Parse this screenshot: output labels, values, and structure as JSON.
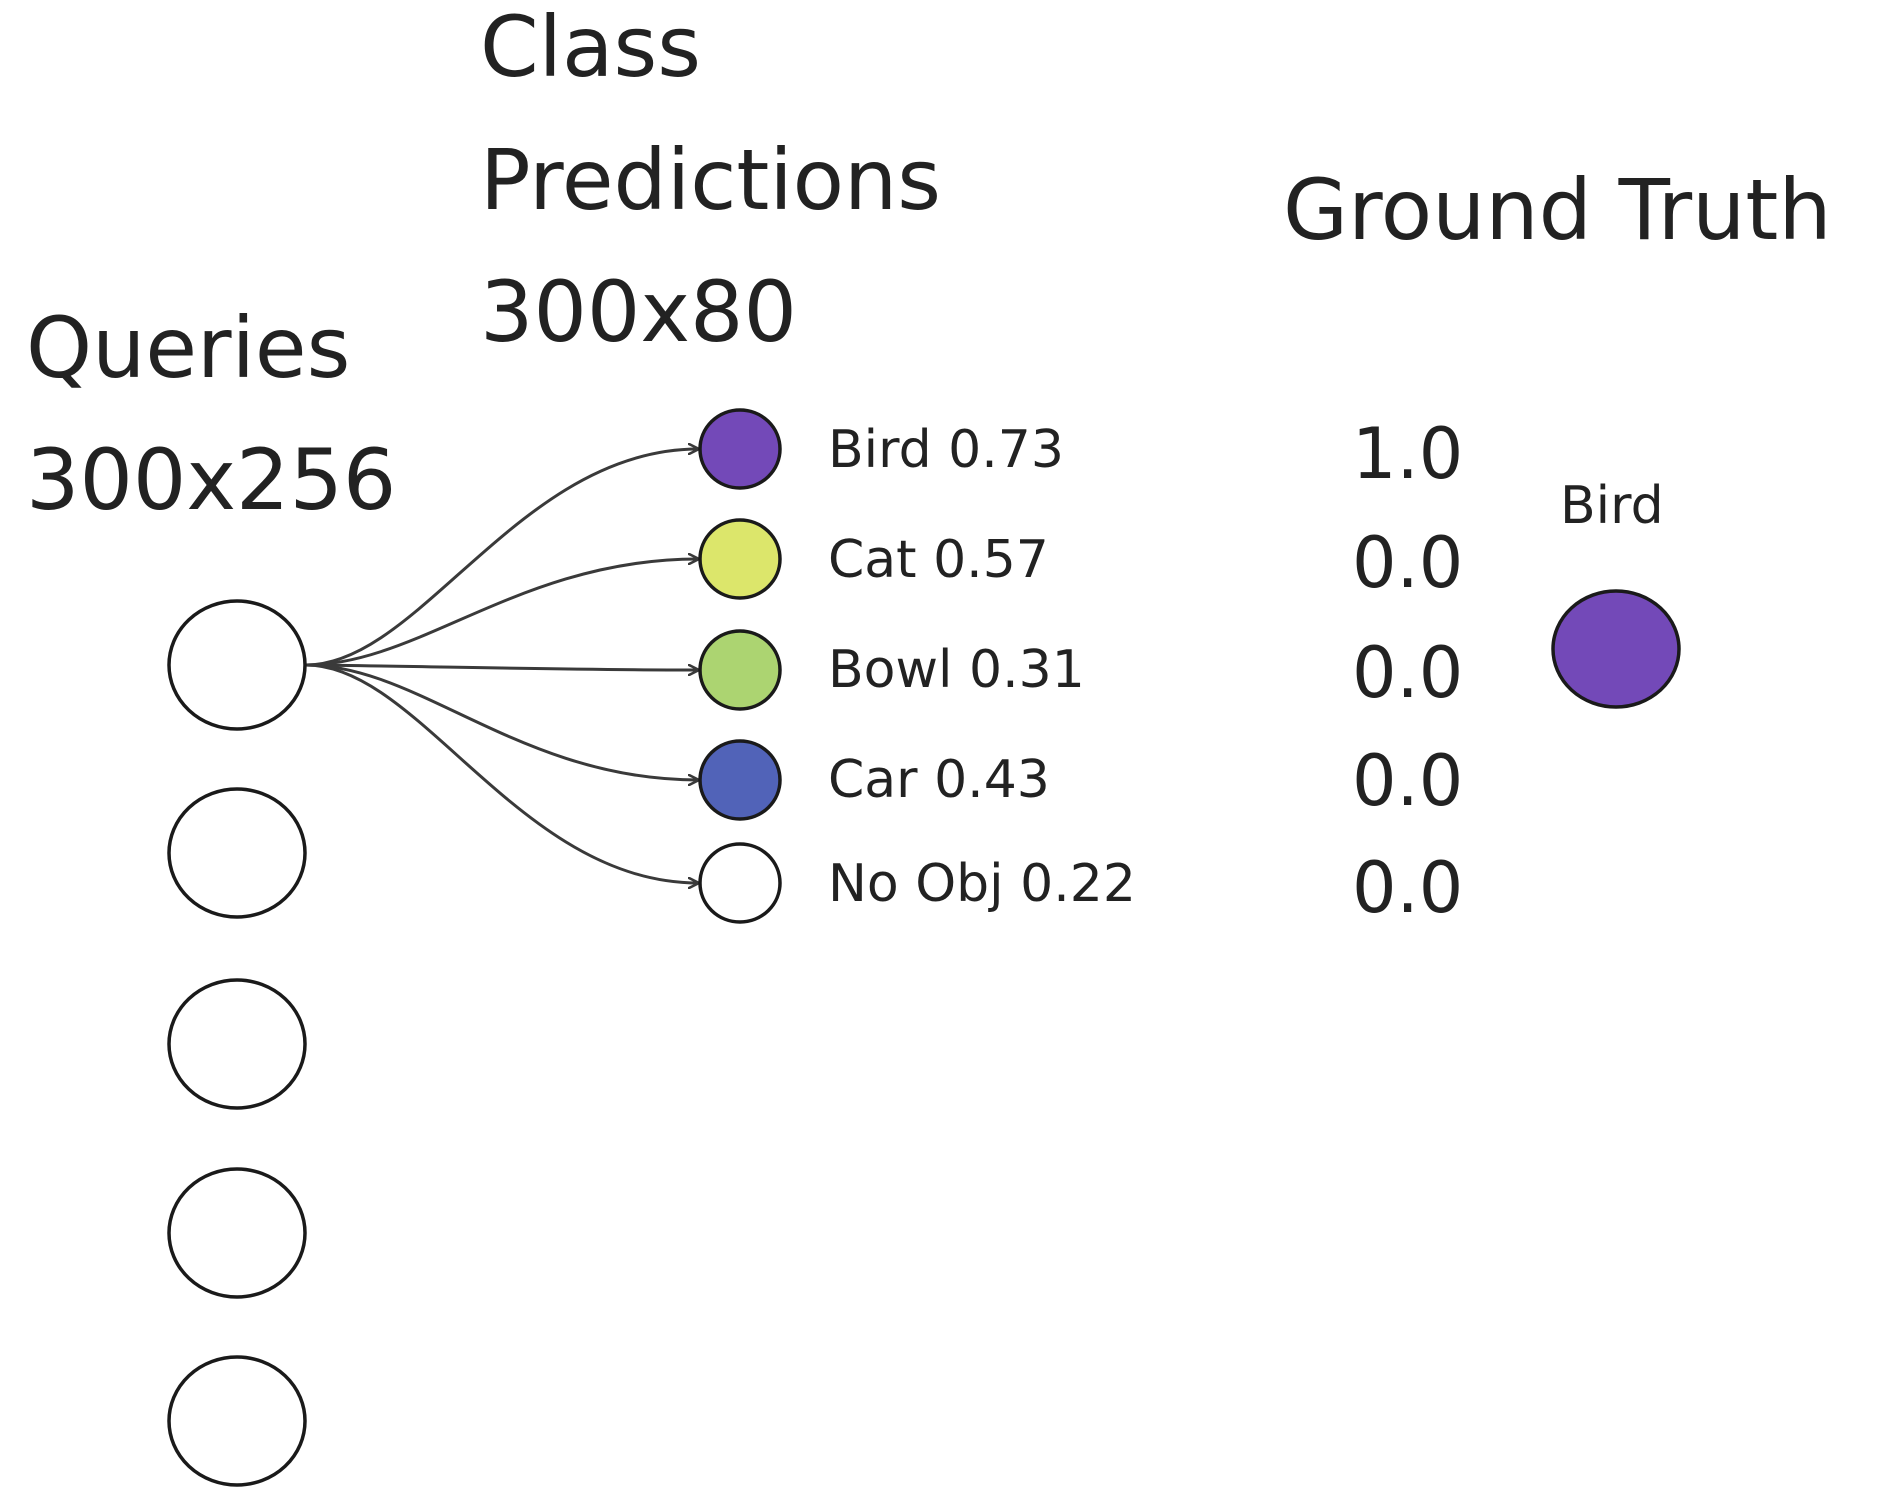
{
  "headings": {
    "queries_title": "Queries",
    "queries_shape": "300x256",
    "predictions_line1": "Class",
    "predictions_line2": "Predictions",
    "predictions_shape": "300x80",
    "ground_truth_title": "Ground Truth"
  },
  "queries": {
    "count_shown": 5,
    "node_color": "#ffffff"
  },
  "class_predictions": [
    {
      "label": "Bird 0.73",
      "color": "#7349b8"
    },
    {
      "label": "Cat 0.57",
      "color": "#dce66b"
    },
    {
      "label": "Bowl 0.31",
      "color": "#acd471"
    },
    {
      "label": "Car 0.43",
      "color": "#5163b8"
    },
    {
      "label": "No Obj 0.22",
      "color": "#ffffff"
    }
  ],
  "ground_truth": {
    "values": [
      "1.0",
      "0.0",
      "0.0",
      "0.0",
      "0.0"
    ],
    "object_label": "Bird",
    "object_color": "#7349b8"
  },
  "colors": {
    "stroke": "#1a1a1a",
    "arrow": "#3a3a3a",
    "text": "#222222"
  }
}
